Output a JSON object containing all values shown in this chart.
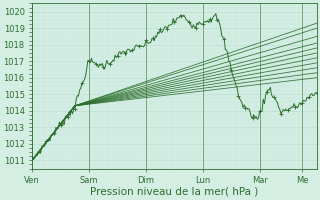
{
  "background_color": "#d4eee4",
  "grid_color_major": "#b8ddd0",
  "grid_color_minor": "#c8e8dc",
  "line_color": "#2d6e2d",
  "ylim": [
    1010.5,
    1020.5
  ],
  "xlim": [
    0,
    120
  ],
  "yticks": [
    1011,
    1012,
    1013,
    1014,
    1015,
    1016,
    1017,
    1018,
    1019,
    1020
  ],
  "xlabel": "Pression niveau de la mer( hPa )",
  "xlabel_fontsize": 7.5,
  "tick_fontsize": 6.0,
  "day_labels": [
    "Ven",
    "Sam",
    "Dim",
    "Lun",
    "Mar",
    "Me"
  ],
  "day_positions": [
    0,
    24,
    48,
    72,
    96,
    114
  ],
  "figsize": [
    3.2,
    2.0
  ],
  "dpi": 100
}
